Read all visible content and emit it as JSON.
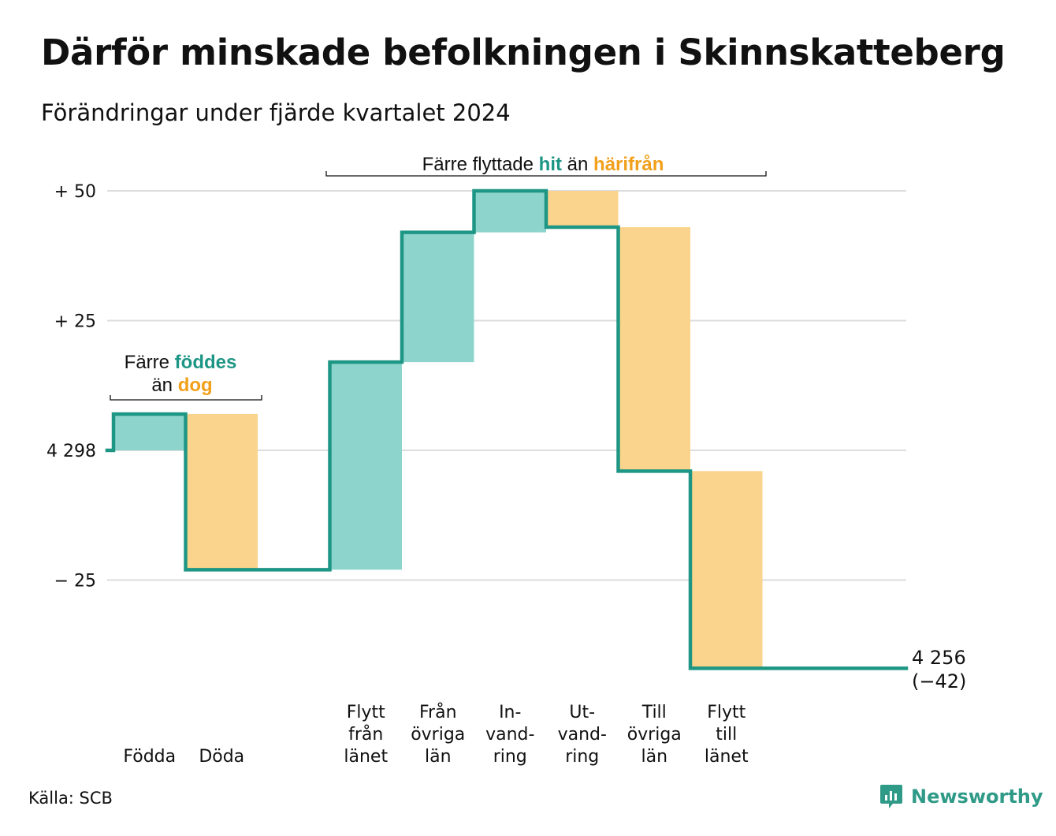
{
  "title": "Därför minskade befolkningen i Skinnskatteberg",
  "subtitle": "Förändringar under fjärde kvartalet 2024",
  "source": "Källa: SCB",
  "brand": "Newsworthy",
  "colors": {
    "increase_fill": "#8dd5cc",
    "decrease_fill": "#fad48c",
    "step_line": "#1e9685",
    "accent_teal": "#1e9685",
    "accent_orange": "#f2a01b",
    "grid": "#dddddd"
  },
  "annotations": {
    "births": {
      "line1_prefix": "Färre",
      "line1_highlight": "föddes",
      "line2_prefix": "än",
      "line2_highlight": "dog"
    },
    "migration": {
      "prefix": "Färre flyttade",
      "highlight1": "hit",
      "middle": "än",
      "highlight2": "härifrån"
    }
  },
  "chart_data": {
    "type": "waterfall",
    "start_value": 4298,
    "start_label": "4 298",
    "end_value": 4256,
    "end_label": "4 256",
    "end_change_label": "(−42)",
    "yticks": [
      {
        "value": 50,
        "label": "+ 50"
      },
      {
        "value": 25,
        "label": "+ 25"
      },
      {
        "value": 0,
        "label": "4 298"
      },
      {
        "value": -25,
        "label": "− 25"
      }
    ],
    "ylim": [
      -42,
      50
    ],
    "grid": true,
    "steps": [
      {
        "lines": [
          "Födda"
        ],
        "value": 7
      },
      {
        "lines": [
          "Döda"
        ],
        "value": -30
      },
      {
        "lines": [
          ""
        ],
        "value": 0
      },
      {
        "lines": [
          "Flytt",
          "från",
          "länet"
        ],
        "value": 40
      },
      {
        "lines": [
          "Från",
          "övriga",
          "län"
        ],
        "value": 25
      },
      {
        "lines": [
          "In-",
          "vand-",
          "ring"
        ],
        "value": 8
      },
      {
        "lines": [
          "Ut-",
          "vand-",
          "ring"
        ],
        "value": -7
      },
      {
        "lines": [
          "Till",
          "övriga",
          "län"
        ],
        "value": -47
      },
      {
        "lines": [
          "Flytt",
          "till",
          "länet"
        ],
        "value": -38
      }
    ]
  }
}
